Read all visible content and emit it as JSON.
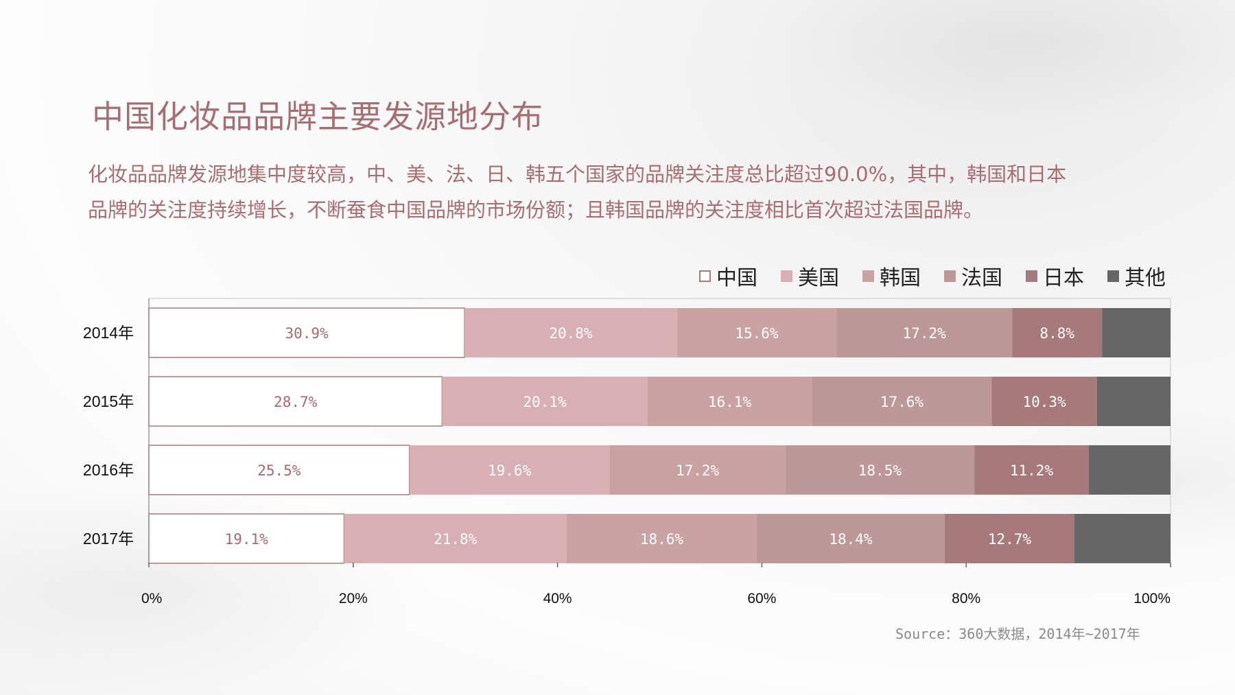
{
  "header": {
    "title": "中国化妆品品牌主要发源地分布",
    "description_line1": "化妆品品牌发源地集中度较高，中、美、法、日、韩五个国家的品牌关注度总比超过90.0%，其中，韩国和日本",
    "description_line2": "品牌的关注度持续增长，不断蚕食中国品牌的市场份额；且韩国品牌的关注度相比首次超过法国品牌。"
  },
  "source": "Source：360大数据，2014年~2017年",
  "chart_data": {
    "type": "bar",
    "orientation": "horizontal",
    "stacked": true,
    "categories": [
      "2014年",
      "2015年",
      "2016年",
      "2017年"
    ],
    "series": [
      {
        "name": "中国",
        "color": "#ffffff",
        "border": "#a77a7c",
        "label_color": "#a8686c",
        "values": [
          30.9,
          28.7,
          25.5,
          19.1
        ],
        "labels": [
          "30.9%",
          "28.7%",
          "25.5%",
          "19.1%"
        ]
      },
      {
        "name": "美国",
        "color": "#d8b0b4",
        "label_color": "#ffffff",
        "values": [
          20.8,
          20.1,
          19.6,
          21.8
        ],
        "labels": [
          "20.8%",
          "20.1%",
          "19.6%",
          "21.8%"
        ]
      },
      {
        "name": "韩国",
        "color": "#c9a2a3",
        "label_color": "#ffffff",
        "values": [
          15.6,
          16.1,
          17.2,
          18.6
        ],
        "labels": [
          "15.6%",
          "16.1%",
          "17.2%",
          "18.6%"
        ]
      },
      {
        "name": "法国",
        "color": "#bd9898",
        "label_color": "#ffffff",
        "values": [
          17.2,
          17.6,
          18.5,
          18.4
        ],
        "labels": [
          "17.2%",
          "17.6%",
          "18.5%",
          "18.4%"
        ]
      },
      {
        "name": "日本",
        "color": "#a67a7b",
        "label_color": "#ffffff",
        "values": [
          8.8,
          10.3,
          11.2,
          12.7
        ],
        "labels": [
          "8.8%",
          "10.3%",
          "11.2%",
          "12.7%"
        ]
      },
      {
        "name": "其他",
        "color": "#666666",
        "label_color": "#ffffff",
        "values": [
          6.7,
          7.2,
          8.0,
          9.4
        ],
        "labels": [
          "",
          "",
          "",
          ""
        ]
      }
    ],
    "xlim": [
      0,
      100
    ],
    "xticks": [
      0,
      20,
      40,
      60,
      80,
      100
    ],
    "xtick_labels": [
      "0%",
      "20%",
      "40%",
      "60%",
      "80%",
      "100%"
    ],
    "legend_position": "top-right",
    "grid": false
  }
}
